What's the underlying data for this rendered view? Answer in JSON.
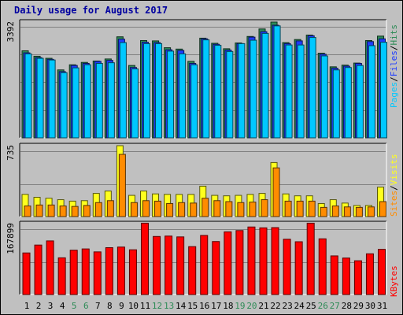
{
  "title": "Daily usage for August 2017",
  "colors": {
    "hits": "#2e8b57",
    "files": "#1e3cff",
    "pages": "#00c8ff",
    "visits": "#ffff1e",
    "sites": "#ff8c00",
    "kbytes": "#ff0000",
    "weekend_day": "#2e8b57",
    "weekday": "#000000"
  },
  "right_labels": {
    "panel1": [
      "Pages",
      "Files",
      "Hits"
    ],
    "panel2": [
      "Sites",
      "Visits"
    ],
    "panel3": [
      "KBytes"
    ],
    "sep": "/"
  },
  "chart_data": {
    "type": "bar",
    "title": "Daily usage for August 2017",
    "categories": [
      "1",
      "2",
      "3",
      "4",
      "5",
      "6",
      "7",
      "8",
      "9",
      "10",
      "11",
      "12",
      "13",
      "14",
      "15",
      "16",
      "17",
      "18",
      "19",
      "20",
      "21",
      "22",
      "23",
      "24",
      "25",
      "26",
      "27",
      "28",
      "29",
      "30",
      "31"
    ],
    "weekend_days": [
      "5",
      "6",
      "12",
      "13",
      "19",
      "20",
      "26",
      "27"
    ],
    "panels": [
      {
        "name": "panel1",
        "max_label": "3392",
        "ymax": 3392,
        "series": [
          {
            "name": "Hits",
            "values": [
              2550,
              2390,
              2330,
              1990,
              2140,
              2210,
              2250,
              2310,
              2960,
              2120,
              2850,
              2840,
              2640,
              2600,
              2240,
              2920,
              2770,
              2610,
              2780,
              2970,
              3190,
              3392,
              2790,
              2880,
              3010,
              2480,
              2080,
              2130,
              2190,
              2850,
              2980
            ]
          },
          {
            "name": "Files",
            "values": [
              2490,
              2350,
              2300,
              1940,
              2120,
              2180,
              2240,
              2270,
              2890,
              2060,
              2800,
              2790,
              2580,
              2560,
              2180,
              2900,
              2740,
              2570,
              2760,
              2950,
              3110,
              3300,
              2760,
              2840,
              2990,
              2450,
              2040,
              2100,
              2180,
              2820,
              2900
            ]
          },
          {
            "name": "Pages",
            "values": [
              2460,
              2330,
              2280,
              1910,
              2050,
              2140,
              2180,
              2200,
              2790,
              2020,
              2760,
              2760,
              2540,
              2460,
              2140,
              2870,
              2710,
              2530,
              2760,
              2860,
              3060,
              3280,
              2720,
              2720,
              2940,
              2400,
              1990,
              2060,
              2120,
              2700,
              2800
            ]
          }
        ]
      },
      {
        "name": "panel2",
        "max_label": "735",
        "ymax": 735,
        "series": [
          {
            "name": "Visits",
            "values": [
              230,
              200,
              190,
              175,
              160,
              165,
              240,
              265,
              735,
              220,
              265,
              235,
              230,
              230,
              230,
              315,
              220,
              215,
              220,
              230,
              240,
              560,
              235,
              215,
              215,
              135,
              175,
              140,
              115,
              115,
              305
            ]
          },
          {
            "name": "Sites",
            "values": [
              110,
              120,
              120,
              110,
              105,
              115,
              145,
              165,
              645,
              145,
              165,
              160,
              135,
              145,
              140,
              190,
              165,
              155,
              145,
              150,
              175,
              505,
              160,
              160,
              160,
              95,
              110,
              100,
              95,
              100,
              155
            ]
          }
        ]
      },
      {
        "name": "panel3",
        "max_label": "167899",
        "ymax": 167899,
        "series": [
          {
            "name": "KBytes",
            "values": [
              98500,
              117200,
              127000,
              87000,
              105000,
              108000,
              101000,
              111000,
              112500,
              106000,
              169000,
              137500,
              138500,
              136500,
              113500,
              140000,
              125500,
              148500,
              151500,
              160000,
              158000,
              158500,
              131000,
              125000,
              169000,
              132000,
              91500,
              86500,
              80000,
              96500,
              107000
            ]
          }
        ]
      }
    ]
  }
}
